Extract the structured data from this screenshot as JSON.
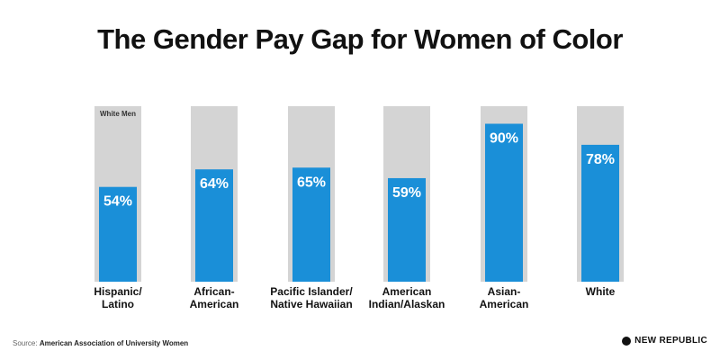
{
  "chart_data": {
    "type": "bar",
    "title": "The Gender Pay Gap for Women of Color",
    "reference_label": "White Men",
    "reference_value": 100,
    "categories": [
      [
        "Hispanic/",
        "Latino"
      ],
      [
        "African-",
        "American"
      ],
      [
        "Pacific Islander/",
        "Native Hawaiian"
      ],
      [
        "American",
        "Indian/Alaskan"
      ],
      [
        "Asian-",
        "American"
      ],
      [
        "White"
      ]
    ],
    "values": [
      54,
      64,
      65,
      59,
      90,
      78
    ],
    "value_labels": [
      "54%",
      "64%",
      "65%",
      "59%",
      "90%",
      "78%"
    ],
    "ylim": [
      0,
      100
    ],
    "colors": {
      "bar": "#1a8fd8",
      "reference": "#d4d4d4"
    }
  },
  "footer": {
    "source_label": "Source:",
    "source_org": "American Association of University Women",
    "brand": "NEW REPUBLIC"
  }
}
